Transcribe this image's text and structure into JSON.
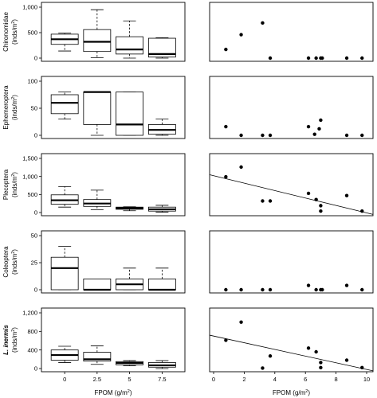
{
  "chart_data": [
    {
      "type": "boxplot",
      "taxon": "Chironomidae",
      "ylabel_unit": "(inds/m",
      "ylabel_sup": "2",
      "ylabel_close": ")",
      "ylim": [
        0,
        1000
      ],
      "yticks": [
        0,
        500,
        1000
      ],
      "ytick_labels": [
        "0",
        "500",
        "1,000"
      ],
      "categories": [
        "0",
        "2.5",
        "5",
        "7.5"
      ],
      "boxes": [
        {
          "min": 140,
          "q1": 270,
          "median": 370,
          "q3": 470,
          "max": 490
        },
        {
          "min": 10,
          "q1": 130,
          "median": 320,
          "q3": 560,
          "max": 950
        },
        {
          "min": 0,
          "q1": 80,
          "median": 170,
          "q3": 420,
          "max": 730
        },
        {
          "min": 0,
          "q1": 20,
          "median": 80,
          "q3": 390,
          "max": 400
        }
      ]
    },
    {
      "type": "scatter",
      "taxon": "Chironomidae",
      "xlim": [
        0,
        10
      ],
      "ylim": [
        0,
        1000
      ],
      "points": [
        [
          0.8,
          170
        ],
        [
          1.8,
          460
        ],
        [
          3.2,
          690
        ],
        [
          3.7,
          0
        ],
        [
          6.2,
          0
        ],
        [
          6.7,
          0
        ],
        [
          7.0,
          0
        ],
        [
          7.1,
          0
        ],
        [
          8.7,
          0
        ],
        [
          9.7,
          0
        ]
      ],
      "trend": null
    },
    {
      "type": "boxplot",
      "taxon": "Ephemeroptera",
      "ylabel_unit": "(inds/m",
      "ylabel_sup": "2",
      "ylabel_close": ")",
      "ylim": [
        0,
        100
      ],
      "yticks": [
        0,
        50,
        100
      ],
      "ytick_labels": [
        "0",
        "50",
        "100"
      ],
      "categories": [
        "0",
        "2.5",
        "5",
        "7.5"
      ],
      "boxes": [
        {
          "min": 30,
          "q1": 40,
          "median": 60,
          "q3": 75,
          "max": 80
        },
        {
          "min": 0,
          "q1": 20,
          "median": 80,
          "q3": 80,
          "max": 80
        },
        {
          "min": 0,
          "q1": 0,
          "median": 20,
          "q3": 80,
          "max": 80
        },
        {
          "min": 0,
          "q1": 2,
          "median": 10,
          "q3": 20,
          "max": 30
        }
      ]
    },
    {
      "type": "scatter",
      "taxon": "Ephemeroptera",
      "xlim": [
        0,
        10
      ],
      "ylim": [
        0,
        100
      ],
      "points": [
        [
          0.8,
          16
        ],
        [
          1.8,
          0
        ],
        [
          3.2,
          0
        ],
        [
          3.7,
          0
        ],
        [
          6.2,
          16
        ],
        [
          6.6,
          2
        ],
        [
          6.9,
          12
        ],
        [
          7.0,
          28
        ],
        [
          8.7,
          0
        ],
        [
          9.7,
          0
        ]
      ],
      "trend": null
    },
    {
      "type": "boxplot",
      "taxon": "Plecoptera",
      "ylabel_unit": "(inds/m",
      "ylabel_sup": "2",
      "ylabel_close": ")",
      "ylim": [
        0,
        1500
      ],
      "yticks": [
        0,
        500,
        1000,
        1500
      ],
      "ytick_labels": [
        "0",
        "500",
        "1,000",
        "1,500"
      ],
      "categories": [
        "0",
        "2.5",
        "5",
        "7.5"
      ],
      "boxes": [
        {
          "min": 150,
          "q1": 230,
          "median": 340,
          "q3": 490,
          "max": 720
        },
        {
          "min": 80,
          "q1": 170,
          "median": 250,
          "q3": 360,
          "max": 620
        },
        {
          "min": 50,
          "q1": 90,
          "median": 120,
          "q3": 150,
          "max": 160
        },
        {
          "min": 10,
          "q1": 40,
          "median": 90,
          "q3": 150,
          "max": 200
        }
      ]
    },
    {
      "type": "scatter",
      "taxon": "Plecoptera",
      "xlim": [
        0,
        10
      ],
      "ylim": [
        0,
        1500
      ],
      "points": [
        [
          0.8,
          990
        ],
        [
          1.8,
          1260
        ],
        [
          3.2,
          320
        ],
        [
          3.7,
          320
        ],
        [
          6.2,
          530
        ],
        [
          6.7,
          360
        ],
        [
          7.0,
          190
        ],
        [
          7.0,
          40
        ],
        [
          8.7,
          470
        ],
        [
          9.7,
          40
        ]
      ],
      "trend": {
        "x0": 0,
        "y0": 1020,
        "x1": 10,
        "y1": -10
      }
    },
    {
      "type": "boxplot",
      "taxon": "Coleoptera",
      "ylabel_unit": "(inds/m",
      "ylabel_sup": "2",
      "ylabel_close": ")",
      "ylim": [
        0,
        50
      ],
      "yticks": [
        0,
        25,
        50
      ],
      "ytick_labels": [
        "0",
        "25",
        "50"
      ],
      "categories": [
        "0",
        "2.5",
        "5",
        "7.5"
      ],
      "boxes": [
        {
          "min": 0,
          "q1": 0,
          "median": 20,
          "q3": 30,
          "max": 40
        },
        {
          "min": 0,
          "q1": 0,
          "median": 0,
          "q3": 10,
          "max": 10
        },
        {
          "min": 0,
          "q1": 0,
          "median": 5,
          "q3": 10,
          "max": 20
        },
        {
          "min": 0,
          "q1": 0,
          "median": 0,
          "q3": 10,
          "max": 20
        }
      ]
    },
    {
      "type": "scatter",
      "taxon": "Coleoptera",
      "xlim": [
        0,
        10
      ],
      "ylim": [
        0,
        50
      ],
      "points": [
        [
          0.8,
          0
        ],
        [
          1.8,
          0
        ],
        [
          3.2,
          0
        ],
        [
          3.7,
          0
        ],
        [
          6.2,
          4
        ],
        [
          6.7,
          0
        ],
        [
          7.0,
          0
        ],
        [
          7.1,
          0
        ],
        [
          8.7,
          4
        ],
        [
          9.7,
          0
        ]
      ],
      "trend": null
    },
    {
      "type": "boxplot",
      "taxon": "L. inermis",
      "taxon_italic": true,
      "ylabel_unit": "(inds/m",
      "ylabel_sup": "2",
      "ylabel_close": ")",
      "ylim": [
        0,
        1200
      ],
      "yticks": [
        0,
        400,
        800,
        1200
      ],
      "ytick_labels": [
        "0",
        "400",
        "800",
        "1,200"
      ],
      "categories": [
        "0",
        "2.5",
        "5",
        "7.5"
      ],
      "xlabel": "FPOM (g/m",
      "xlabel_sup": "2",
      "xlabel_close": ")",
      "boxes": [
        {
          "min": 130,
          "q1": 180,
          "median": 290,
          "q3": 400,
          "max": 480
        },
        {
          "min": 90,
          "q1": 160,
          "median": 200,
          "q3": 350,
          "max": 490
        },
        {
          "min": 60,
          "q1": 80,
          "median": 120,
          "q3": 150,
          "max": 170
        },
        {
          "min": 0,
          "q1": 30,
          "median": 70,
          "q3": 130,
          "max": 170
        }
      ]
    },
    {
      "type": "scatter",
      "taxon": "L. inermis",
      "xlim": [
        0,
        10
      ],
      "ylim": [
        0,
        1200
      ],
      "xticks": [
        0,
        2,
        4,
        6,
        8,
        10
      ],
      "xtick_labels": [
        "0",
        "2",
        "4",
        "6",
        "8",
        "10"
      ],
      "xlabel": "FPOM (g/m",
      "xlabel_sup": "2",
      "xlabel_close": ")",
      "points": [
        [
          0.8,
          610
        ],
        [
          1.8,
          1000
        ],
        [
          3.2,
          10
        ],
        [
          3.7,
          270
        ],
        [
          6.2,
          440
        ],
        [
          6.7,
          360
        ],
        [
          7.0,
          130
        ],
        [
          7.0,
          20
        ],
        [
          8.7,
          180
        ],
        [
          9.7,
          20
        ]
      ],
      "trend": {
        "x0": 0,
        "y0": 700,
        "x1": 10,
        "y1": -20
      }
    }
  ]
}
